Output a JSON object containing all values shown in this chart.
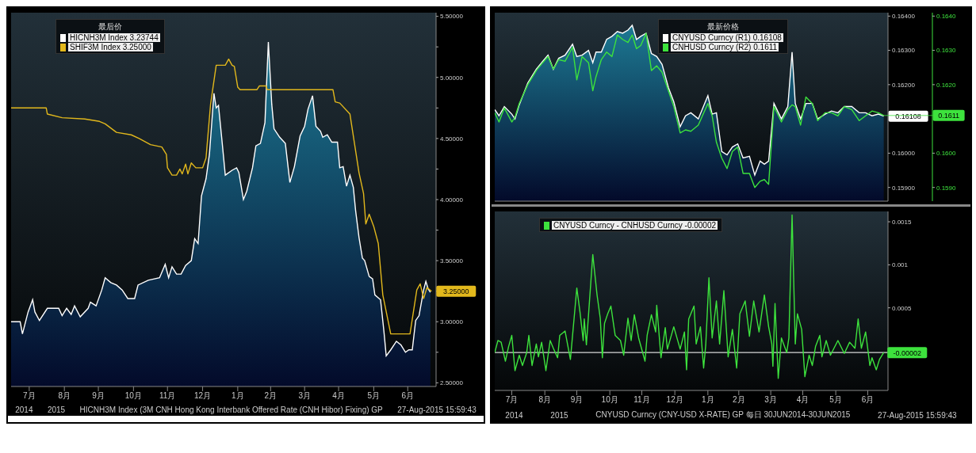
{
  "chart_data": [
    {
      "type": "line",
      "legend": "top left",
      "legend_title": "最后价",
      "xlim": [
        "2014-06-30",
        "2015-07-10"
      ],
      "xticks": [
        {
          "value": "2014-07-16",
          "label": "7月"
        },
        {
          "value": "2014-08-16",
          "label": "8月"
        },
        {
          "value": "2014-09-15",
          "label": "9月"
        },
        {
          "value": "2014-10-16",
          "label": "10月"
        },
        {
          "value": "2014-11-15",
          "label": "11月"
        },
        {
          "value": "2014-12-16",
          "label": "12月"
        },
        {
          "value": "2015-01-16",
          "label": "1月"
        },
        {
          "value": "2015-02-14",
          "label": "2月"
        },
        {
          "value": "2015-03-16",
          "label": "3月"
        },
        {
          "value": "2015-04-15",
          "label": "4月"
        },
        {
          "value": "2015-05-16",
          "label": "5月"
        },
        {
          "value": "2015-06-15",
          "label": "6月"
        }
      ],
      "ylim": [
        2.47,
        5.53
      ],
      "yticks": [
        {
          "value": 2.5,
          "label": "2.50000"
        },
        {
          "value": 2.75,
          "label": null
        },
        {
          "value": 3,
          "label": "3.00000"
        },
        {
          "value": 3.25,
          "label": null
        },
        {
          "value": 3.5,
          "label": "3.50000"
        },
        {
          "value": 3.75,
          "label": null
        },
        {
          "value": 4,
          "label": "4.00000"
        },
        {
          "value": 4.25,
          "label": null
        },
        {
          "value": 4.5,
          "label": "4.50000"
        },
        {
          "value": 4.75,
          "label": null
        },
        {
          "value": 5,
          "label": "5.00000"
        },
        {
          "value": 5.25,
          "label": null
        },
        {
          "value": 5.5,
          "label": "5.50000"
        }
      ],
      "series": [
        {
          "name": "HICNH3M Index 3.23744",
          "type": "area",
          "color": "#ffffff",
          "x": [
            "2014-06-30",
            "2014-07-08",
            "2014-07-10",
            "2014-07-15",
            "2014-07-19",
            "2014-07-21",
            "2014-07-25",
            "2014-08-01",
            "2014-08-11",
            "2014-08-14",
            "2014-08-18",
            "2014-08-22",
            "2014-08-25",
            "2014-08-30",
            "2014-09-06",
            "2014-09-08",
            "2014-09-13",
            "2014-09-18",
            "2014-09-21",
            "2014-09-26",
            "2014-10-01",
            "2014-10-06",
            "2014-10-11",
            "2014-10-17",
            "2014-10-20",
            "2014-10-29",
            "2014-11-08",
            "2014-11-13",
            "2014-11-16",
            "2014-11-19",
            "2014-11-23",
            "2014-11-27",
            "2014-12-01",
            "2014-12-06",
            "2014-12-09",
            "2014-12-12",
            "2014-12-15",
            "2014-12-19",
            "2014-12-22",
            "2014-12-26",
            "2014-12-28",
            "2014-12-30",
            "2015-01-02",
            "2015-01-05",
            "2015-01-11",
            "2015-01-15",
            "2015-01-17",
            "2015-01-21",
            "2015-01-24",
            "2015-01-29",
            "2015-02-01",
            "2015-02-05",
            "2015-02-09",
            "2015-02-12",
            "2015-02-15",
            "2015-02-17",
            "2015-02-22",
            "2015-02-27",
            "2015-03-03",
            "2015-03-07",
            "2015-03-12",
            "2015-03-16",
            "2015-03-19",
            "2015-03-23",
            "2015-03-26",
            "2015-03-30",
            "2015-04-01",
            "2015-04-05",
            "2015-04-09",
            "2015-04-14",
            "2015-04-16",
            "2015-04-19",
            "2015-04-22",
            "2015-04-25",
            "2015-04-28",
            "2015-04-30",
            "2015-05-03",
            "2015-05-06",
            "2015-05-08",
            "2015-05-12",
            "2015-05-15",
            "2015-05-17",
            "2015-05-22",
            "2015-05-25",
            "2015-05-27",
            "2015-05-31",
            "2015-06-05",
            "2015-06-09",
            "2015-06-13",
            "2015-06-16",
            "2015-06-19",
            "2015-06-22",
            "2015-06-25",
            "2015-06-29",
            "2015-07-01",
            "2015-07-03",
            "2015-07-05"
          ],
          "values": [
            3.0,
            3.0,
            2.9,
            3.08,
            3.18,
            3.08,
            3.01,
            3.11,
            3.11,
            3.05,
            3.11,
            3.06,
            3.13,
            3.04,
            3.11,
            3.16,
            3.13,
            3.26,
            3.36,
            3.32,
            3.3,
            3.26,
            3.19,
            3.19,
            3.3,
            3.34,
            3.36,
            3.47,
            3.36,
            3.45,
            3.39,
            3.39,
            3.46,
            3.5,
            3.68,
            3.64,
            4.03,
            4.17,
            4.37,
            4.87,
            4.75,
            4.77,
            4.49,
            4.2,
            4.24,
            4.26,
            4.22,
            4.0,
            4.07,
            4.26,
            4.44,
            4.46,
            4.63,
            5.29,
            4.78,
            4.58,
            4.51,
            4.46,
            4.14,
            4.27,
            4.52,
            4.6,
            4.74,
            4.85,
            4.6,
            4.56,
            4.51,
            4.53,
            4.47,
            4.47,
            4.26,
            4.27,
            4.11,
            4.2,
            4.1,
            3.91,
            3.69,
            3.52,
            3.5,
            3.37,
            3.35,
            3.22,
            3.18,
            2.92,
            2.72,
            2.77,
            2.84,
            2.81,
            2.75,
            2.77,
            2.77,
            3.01,
            3.05,
            3.26,
            3.33,
            3.27,
            3.24
          ]
        },
        {
          "name": "SHIF3M Index 3.25000",
          "color": "#e2b81c",
          "x": [
            "2014-06-30",
            "2014-07-31",
            "2014-08-01",
            "2014-08-14",
            "2014-09-03",
            "2014-09-16",
            "2014-09-21",
            "2014-10-01",
            "2014-10-14",
            "2014-10-21",
            "2014-10-31",
            "2014-11-10",
            "2014-11-14",
            "2014-11-15",
            "2014-11-19",
            "2014-11-23",
            "2014-11-26",
            "2014-11-28",
            "2014-12-01",
            "2014-12-03",
            "2014-12-06",
            "2014-12-10",
            "2014-12-16",
            "2014-12-19",
            "2014-12-23",
            "2014-12-28",
            "2015-01-05",
            "2015-01-08",
            "2015-01-11",
            "2015-01-13",
            "2015-01-16",
            "2015-01-18",
            "2015-02-02",
            "2015-02-04",
            "2015-02-10",
            "2015-02-11",
            "2015-04-10",
            "2015-04-12",
            "2015-04-16",
            "2015-04-25",
            "2015-04-29",
            "2015-05-03",
            "2015-05-07",
            "2015-05-09",
            "2015-05-12",
            "2015-05-16",
            "2015-05-20",
            "2015-05-24",
            "2015-05-31",
            "2015-06-17",
            "2015-06-23",
            "2015-06-26",
            "2015-06-29",
            "2015-07-02",
            "2015-07-06"
          ],
          "values": [
            4.75,
            4.75,
            4.7,
            4.67,
            4.66,
            4.64,
            4.62,
            4.55,
            4.53,
            4.5,
            4.45,
            4.43,
            4.37,
            4.26,
            4.2,
            4.2,
            4.25,
            4.21,
            4.29,
            4.21,
            4.3,
            4.26,
            4.26,
            4.34,
            4.78,
            5.1,
            5.1,
            5.15,
            5.1,
            5.09,
            4.92,
            4.9,
            4.9,
            4.93,
            4.93,
            4.9,
            4.9,
            4.8,
            4.79,
            4.7,
            4.46,
            4.22,
            4.05,
            3.8,
            3.88,
            3.78,
            3.64,
            3.22,
            2.9,
            2.9,
            3.26,
            3.31,
            3.19,
            3.28,
            3.25
          ]
        }
      ],
      "annotations": [
        {
          "text": "3.25000",
          "x": "2015-07-06",
          "y": 3.25
        },
        "2014",
        "2015",
        "HICNH3M Index (3M CNH Hong Kong Interbank Offered Rate (CNH Hibor) Fixing) GP",
        "27-Aug-2015 15:59:43"
      ]
    },
    {
      "type": "line",
      "legend": "top",
      "legend_title": "最新价格",
      "tick_labels": "y",
      "xlim": [
        "2014-06-30",
        "2015-07-04"
      ],
      "ylim": [
        0.1586,
        0.1641
      ],
      "yticks": [
        {
          "value": 0.159,
          "label": "0.15900"
        },
        {
          "value": 0.16,
          "label": "0.16000"
        },
        {
          "value": 0.162,
          "label": "0.16200"
        },
        {
          "value": 0.163,
          "label": "0.16300"
        },
        {
          "value": 0.164,
          "label": "0.16400"
        }
      ],
      "y2lim": [
        0.1586,
        0.1641
      ],
      "y2ticks": [
        {
          "value": 0.159,
          "label": "0.1590"
        },
        {
          "value": 0.16,
          "label": "0.1600"
        },
        {
          "value": 0.162,
          "label": "0.1620"
        },
        {
          "value": 0.163,
          "label": "0.1630"
        },
        {
          "value": 0.164,
          "label": "0.1640"
        }
      ],
      "x": [
        "2014-06-30",
        "2014-07-04",
        "2014-07-09",
        "2014-07-16",
        "2014-07-19",
        "2014-07-23",
        "2014-07-31",
        "2014-08-08",
        "2014-08-14",
        "2014-08-19",
        "2014-08-24",
        "2014-08-29",
        "2014-09-04",
        "2014-09-11",
        "2014-09-15",
        "2014-09-20",
        "2014-09-26",
        "2014-09-30",
        "2014-10-03",
        "2014-10-08",
        "2014-10-13",
        "2014-10-18",
        "2014-10-23",
        "2014-10-28",
        "2014-11-02",
        "2014-11-06",
        "2014-11-10",
        "2014-11-14",
        "2014-11-19",
        "2014-11-24",
        "2014-11-29",
        "2014-12-04",
        "2014-12-10",
        "2014-12-15",
        "2014-12-21",
        "2014-12-26",
        "2014-12-31",
        "2015-01-07",
        "2015-01-16",
        "2015-01-20",
        "2015-01-24",
        "2015-01-29",
        "2015-02-03",
        "2015-02-08",
        "2015-02-13",
        "2015-02-18",
        "2015-02-24",
        "2015-03-01",
        "2015-03-06",
        "2015-03-10",
        "2015-03-14",
        "2015-03-19",
        "2015-03-26",
        "2015-04-01",
        "2015-04-05",
        "2015-04-08",
        "2015-04-13",
        "2015-04-18",
        "2015-04-24",
        "2015-04-29",
        "2015-05-06",
        "2015-05-12",
        "2015-05-18",
        "2015-05-24",
        "2015-05-31",
        "2015-06-07",
        "2015-06-13",
        "2015-06-19",
        "2015-06-25",
        "2015-06-30"
      ],
      "series": [
        {
          "name": "CNYUSD Curncy (R1) 0.16108",
          "type": "area",
          "color": "#ffffff",
          "values": [
            0.16127,
            0.16109,
            0.16136,
            0.16114,
            0.161,
            0.16141,
            0.16205,
            0.16245,
            0.16268,
            0.16286,
            0.16245,
            0.16277,
            0.16286,
            0.16318,
            0.16282,
            0.16286,
            0.163,
            0.16264,
            0.16295,
            0.16295,
            0.16332,
            0.16341,
            0.16355,
            0.1635,
            0.16359,
            0.16373,
            0.16332,
            0.16341,
            0.1635,
            0.16291,
            0.16282,
            0.16259,
            0.16191,
            0.1615,
            0.16077,
            0.16109,
            0.16118,
            0.161,
            0.16168,
            0.16114,
            0.16118,
            0.16005,
            0.15995,
            0.16018,
            0.16027,
            0.15986,
            0.15991,
            0.15936,
            0.15977,
            0.15968,
            0.15977,
            0.16145,
            0.161,
            0.16136,
            0.16295,
            0.16145,
            0.161,
            0.16145,
            0.16145,
            0.161,
            0.16114,
            0.16123,
            0.16118,
            0.16136,
            0.16136,
            0.16118,
            0.16118,
            0.16109,
            0.16114,
            0.16108
          ]
        },
        {
          "name": "CNHUSD Curncy (R2) 0.1611",
          "axis": "y2",
          "color": "#3de23d",
          "values": [
            0.16118,
            0.16091,
            0.16132,
            0.16091,
            0.16105,
            0.16145,
            0.162,
            0.16241,
            0.16264,
            0.16282,
            0.16245,
            0.16273,
            0.16268,
            0.16309,
            0.16214,
            0.16282,
            0.16264,
            0.16182,
            0.16223,
            0.16273,
            0.16295,
            0.16282,
            0.16345,
            0.16332,
            0.16323,
            0.16345,
            0.16305,
            0.16314,
            0.1635,
            0.16241,
            0.16255,
            0.16236,
            0.16182,
            0.16136,
            0.16059,
            0.16068,
            0.16064,
            0.16082,
            0.16145,
            0.16109,
            0.16032,
            0.15986,
            0.15955,
            0.16005,
            0.16018,
            0.15941,
            0.15941,
            0.159,
            0.15918,
            0.15923,
            0.15909,
            0.16136,
            0.16091,
            0.16127,
            0.16141,
            0.16136,
            0.16082,
            0.16164,
            0.16145,
            0.16095,
            0.16118,
            0.16118,
            0.16109,
            0.16136,
            0.16127,
            0.16095,
            0.16109,
            0.16123,
            0.16118,
            0.1611
          ]
        }
      ],
      "annotations": [
        {
          "text": "0.16108",
          "x": "2015-06-30",
          "y": 0.16108
        },
        {
          "text": "0.1611",
          "x": "2015-06-30",
          "y": 0.1611
        }
      ]
    },
    {
      "type": "line",
      "legend": "top left",
      "xlim": [
        "2014-06-30",
        "2015-07-04"
      ],
      "xticks": [
        {
          "value": "2014-07-16",
          "label": "7月"
        },
        {
          "value": "2014-08-16",
          "label": "8月"
        },
        {
          "value": "2014-09-15",
          "label": "9月"
        },
        {
          "value": "2014-10-16",
          "label": "10月"
        },
        {
          "value": "2014-11-15",
          "label": "11月"
        },
        {
          "value": "2014-12-16",
          "label": "12月"
        },
        {
          "value": "2015-01-16",
          "label": "1月"
        },
        {
          "value": "2015-02-14",
          "label": "2月"
        },
        {
          "value": "2015-03-16",
          "label": "3月"
        },
        {
          "value": "2015-04-15",
          "label": "4月"
        },
        {
          "value": "2015-05-16",
          "label": "5月"
        },
        {
          "value": "2015-06-15",
          "label": "6月"
        }
      ],
      "ylim": [
        -0.00046,
        0.00162
      ],
      "yticks": [
        0.0005,
        0.001,
        0.0015
      ],
      "ref_lines": [
        {
          "axis": "y",
          "value": -2e-05,
          "label": "-0.00002",
          "color": "#d8d8d8"
        }
      ],
      "series": [
        {
          "name": "CNYUSD Curncy - CNHUSD Curncy -0.00002",
          "color": "#3de23d",
          "x": [
            "2014-06-30",
            "2014-07-03",
            "2014-07-06",
            "2014-07-10",
            "2014-07-13",
            "2014-07-16",
            "2014-07-19",
            "2014-07-23",
            "2014-07-26",
            "2014-07-30",
            "2014-08-01",
            "2014-08-04",
            "2014-08-08",
            "2014-08-10",
            "2014-08-13",
            "2014-08-17",
            "2014-08-21",
            "2014-08-24",
            "2014-08-28",
            "2014-08-30",
            "2014-09-04",
            "2014-09-09",
            "2014-09-15",
            "2014-09-18",
            "2014-09-21",
            "2014-09-22",
            "2014-09-24",
            "2014-09-30",
            "2014-10-04",
            "2014-10-07",
            "2014-10-09",
            "2014-10-11",
            "2014-10-14",
            "2014-10-17",
            "2014-10-21",
            "2014-10-26",
            "2014-10-29",
            "2014-11-02",
            "2014-11-05",
            "2014-11-08",
            "2014-11-12",
            "2014-11-18",
            "2014-11-20",
            "2014-11-24",
            "2014-11-28",
            "2014-11-29",
            "2014-12-03",
            "2014-12-07",
            "2014-12-09",
            "2014-12-15",
            "2014-12-21",
            "2014-12-25",
            "2014-12-27",
            "2014-12-29",
            "2015-01-03",
            "2015-01-05",
            "2015-01-09",
            "2015-01-12",
            "2015-01-14",
            "2015-01-17",
            "2015-01-20",
            "2015-01-24",
            "2015-01-27",
            "2015-01-31",
            "2015-02-04",
            "2015-02-08",
            "2015-02-12",
            "2015-02-15",
            "2015-02-20",
            "2015-02-24",
            "2015-02-28",
            "2015-03-05",
            "2015-03-10",
            "2015-03-14",
            "2015-03-17",
            "2015-03-18",
            "2015-03-20",
            "2015-03-23",
            "2015-03-26",
            "2015-03-31",
            "2015-04-02",
            "2015-04-05",
            "2015-04-08",
            "2015-04-10",
            "2015-04-14",
            "2015-04-17",
            "2015-04-21",
            "2015-04-24",
            "2015-04-27",
            "2015-05-01",
            "2015-05-03",
            "2015-05-07",
            "2015-05-11",
            "2015-05-18",
            "2015-05-24",
            "2015-05-29",
            "2015-06-03",
            "2015-06-06",
            "2015-06-09",
            "2015-06-13",
            "2015-06-17",
            "2015-06-19",
            "2015-06-23",
            "2015-06-26",
            "2015-06-30"
          ],
          "values": [
            -2e-05,
            0.00012,
            0.0001,
            -0.00012,
            5e-05,
            0.00018,
            -0.00023,
            -5e-05,
            -0.00017,
            -2e-05,
            0.00018,
            -0.00017,
            8e-05,
            -7e-05,
            0.0001,
            -0.00023,
            0.00012,
            3e-05,
            -8e-05,
            0.00018,
            0.00023,
            -0.0001,
            0.00073,
            0.00045,
            0.00012,
            0.00037,
            7e-05,
            0.00112,
            0.00065,
            0.00038,
            -8e-05,
            0.00032,
            0.00043,
            0.00052,
            0.00018,
            0.00012,
            -5e-05,
            0.00038,
            0.00012,
            0.00042,
            0.00015,
            -0.00012,
            0.00018,
            0.00042,
            0.00022,
            0.00053,
            -8e-05,
            0.00027,
            2e-05,
            0.00028,
            2e-05,
            0.00022,
            -0.00022,
            0.00037,
            0.00052,
            8e-05,
            0.00028,
            -0.0002,
            7e-05,
            0.00085,
            0.00015,
            0.00058,
            8e-05,
            0.0007,
            -7e-05,
            0.00025,
            -0.0002,
            0.00043,
            0.00058,
            0.00017,
            0.00058,
            0.00022,
            0.00065,
            0.00028,
            8e-05,
            -0.00018,
            0.00055,
            -0.00032,
            0.00015,
            -2e-05,
            0.00015,
            0.00158,
            8e-05,
            0.00043,
            0.00025,
            -0.0003,
            -5e-05,
            -0.00017,
            5e-05,
            0.00018,
            -7e-05,
            0.00012,
            -5e-05,
            0.00012,
            -3e-05,
            0.0001,
            3e-05,
            0.00037,
            3e-05,
            0.00022,
            -0.00017,
            -8e-05,
            -0.00022,
            -0.0001,
            -2e-05
          ]
        }
      ],
      "annotations": [
        "2014",
        "2015",
        "CNYUSD Curncy (CNY-USD X-RATE) GP 每日 30JUN2014-30JUN2015",
        "27-Aug-2015 15:59:43"
      ]
    }
  ]
}
